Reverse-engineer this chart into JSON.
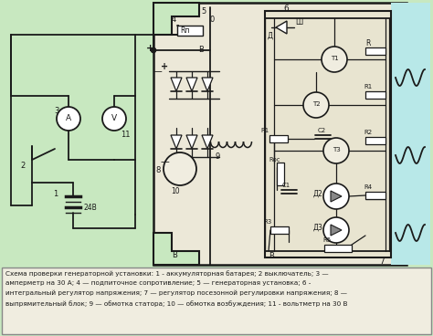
{
  "bg_green": "#c8e8c0",
  "bg_light": "#e8f0e0",
  "bg_cyan": "#b8e8e8",
  "bg_white": "#f0f0e8",
  "caption_bg": "#f0ede0",
  "line_color": "#1a1a1a",
  "caption_text_line1": "Схема проверки генераторной установки: 1 - аккумуляторная батарея; 2 выключатель; 3 —",
  "caption_text_line2": "амперметр на 30 А; 4 — подпиточное сопротивление; 5 — генераторная установка; 6 -",
  "caption_text_line3": "интегральный регулятор напряжения; 7 — регулятор посезонной регулировки напряжения; 8 —",
  "caption_text_line4": "выпрямительный блок; 9 — обмотка статора; 10 — обмотка возбуждения; 11 - вольтметр на 30 В",
  "fig_width": 4.74,
  "fig_height": 3.68,
  "dpi": 100
}
